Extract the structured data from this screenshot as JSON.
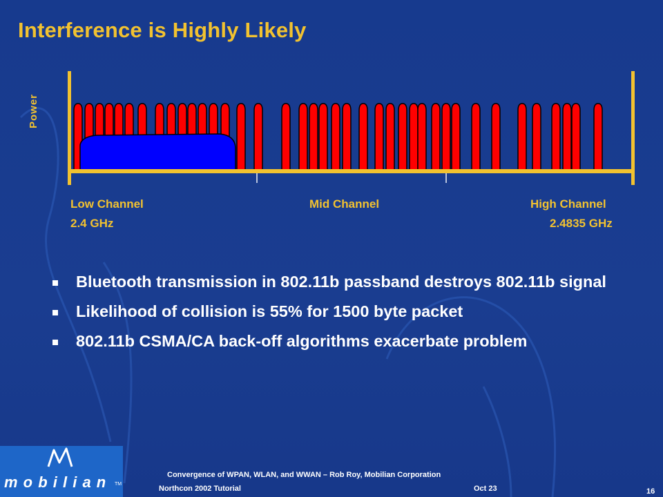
{
  "slide": {
    "title": "Interference is Highly Likely",
    "colors": {
      "background": "#1a3a8a",
      "accent": "#f2c230",
      "wifi": "#ff0000",
      "bluetooth": "#0000ff"
    }
  },
  "figure": {
    "y_label": "Power",
    "low_channel": "Low Channel",
    "low_freq": "2.4 GHz",
    "mid_channel": "Mid Channel",
    "high_channel": "High Channel",
    "high_freq": "2.4835 GHz"
  },
  "bullets": [
    {
      "text": "Bluetooth transmission in 802.11b passband destroys 802.11b signal"
    },
    {
      "text": "Likelihood of collision is 55% for 1500 byte packet"
    },
    {
      "text": "802.11b CSMA/CA back-off algorithms exacerbate problem"
    }
  ],
  "footer": {
    "logo_text": "m o b i l i a n",
    "logo_tm": "TM",
    "line1": "Convergence of WPAN, WLAN, and WWAN – Rob Roy, Mobilian Corporation",
    "line2_left": "Northcon 2002 Tutorial",
    "line2_right": "Oct 23",
    "page_number": "16"
  }
}
